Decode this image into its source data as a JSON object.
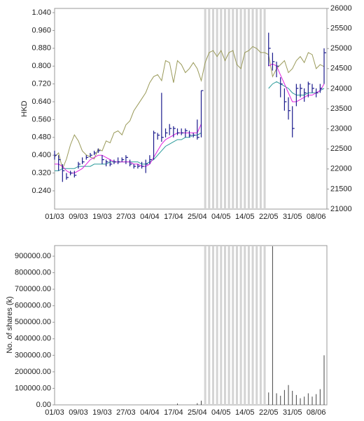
{
  "chart_data": [
    {
      "type": "stock",
      "y_label": "HKD",
      "categories": [
        "01/03",
        null,
        null,
        null,
        null,
        null,
        "09/03",
        null,
        null,
        null,
        null,
        null,
        "19/03",
        null,
        null,
        null,
        null,
        null,
        "27/03",
        null,
        null,
        null,
        null,
        null,
        "04/04",
        null,
        null,
        null,
        null,
        null,
        "17/04",
        null,
        null,
        null,
        null,
        null,
        "25/04",
        null,
        null,
        null,
        null,
        null,
        "04/05",
        null,
        null,
        null,
        null,
        null,
        "14/05",
        null,
        null,
        null,
        null,
        null,
        "22/05",
        null,
        null,
        null,
        null,
        null,
        "31/05",
        null,
        null,
        null,
        null,
        null,
        "08/06",
        null,
        null
      ],
      "high": [
        0.42,
        0.4,
        0.36,
        0.32,
        0.33,
        0.33,
        0.37,
        0.39,
        0.4,
        0.41,
        0.42,
        0.43,
        0.4,
        0.38,
        0.38,
        0.38,
        0.39,
        0.39,
        0.4,
        0.38,
        0.36,
        0.36,
        0.37,
        0.38,
        0.4,
        0.51,
        0.5,
        0.68,
        0.52,
        0.54,
        0.53,
        0.52,
        0.52,
        0.52,
        0.51,
        0.5,
        0.56,
        0.69,
        null,
        null,
        null,
        null,
        null,
        null,
        null,
        null,
        null,
        null,
        null,
        null,
        null,
        null,
        null,
        null,
        0.95,
        0.86,
        0.82,
        0.75,
        0.7,
        0.66,
        0.62,
        0.72,
        0.72,
        0.7,
        0.73,
        0.72,
        0.7,
        0.72,
        0.88
      ],
      "low": [
        0.38,
        0.33,
        0.28,
        0.29,
        0.31,
        0.3,
        0.34,
        0.36,
        0.38,
        0.39,
        0.4,
        0.41,
        0.36,
        0.35,
        0.35,
        0.36,
        0.36,
        0.37,
        0.36,
        0.35,
        0.34,
        0.34,
        0.34,
        0.32,
        0.36,
        0.38,
        0.47,
        0.46,
        0.48,
        0.49,
        0.48,
        0.49,
        0.49,
        0.48,
        0.48,
        0.48,
        0.47,
        0.48,
        null,
        null,
        null,
        null,
        null,
        null,
        null,
        null,
        null,
        null,
        null,
        null,
        null,
        null,
        null,
        null,
        0.8,
        0.78,
        0.75,
        0.66,
        0.6,
        0.56,
        0.48,
        0.62,
        0.66,
        0.64,
        0.66,
        0.68,
        0.66,
        0.68,
        0.72
      ],
      "close": [
        0.4,
        0.38,
        0.33,
        0.3,
        0.32,
        0.31,
        0.36,
        0.37,
        0.39,
        0.4,
        0.41,
        0.42,
        0.38,
        0.37,
        0.36,
        0.37,
        0.37,
        0.38,
        0.39,
        0.36,
        0.35,
        0.35,
        0.35,
        0.36,
        0.38,
        0.5,
        0.49,
        0.48,
        0.5,
        0.52,
        0.52,
        0.5,
        0.5,
        0.51,
        0.49,
        0.49,
        0.48,
        0.69,
        null,
        null,
        null,
        null,
        null,
        null,
        null,
        null,
        null,
        null,
        null,
        null,
        null,
        null,
        null,
        null,
        0.88,
        0.82,
        0.8,
        0.72,
        0.64,
        0.6,
        0.52,
        0.7,
        0.7,
        0.68,
        0.72,
        0.7,
        0.68,
        0.7,
        0.86
      ],
      "ma_short": [
        0.36,
        0.36,
        0.35,
        0.33,
        0.32,
        0.32,
        0.33,
        0.34,
        0.36,
        0.38,
        0.39,
        0.4,
        0.4,
        0.39,
        0.38,
        0.37,
        0.37,
        0.37,
        0.37,
        0.37,
        0.36,
        0.36,
        0.35,
        0.35,
        0.36,
        0.39,
        0.42,
        0.45,
        0.47,
        0.48,
        0.49,
        0.5,
        0.5,
        0.5,
        0.5,
        0.5,
        0.5,
        0.54,
        null,
        null,
        null,
        null,
        null,
        null,
        null,
        null,
        null,
        null,
        null,
        null,
        null,
        null,
        null,
        null,
        0.8,
        0.81,
        0.8,
        0.76,
        0.72,
        0.68,
        0.64,
        0.64,
        0.65,
        0.66,
        0.67,
        0.67,
        0.68,
        0.69,
        0.72
      ],
      "ma_long": [
        0.33,
        0.33,
        0.34,
        0.34,
        0.34,
        0.34,
        0.35,
        0.35,
        0.35,
        0.35,
        0.36,
        0.36,
        0.36,
        0.36,
        0.37,
        0.37,
        0.37,
        0.37,
        0.37,
        0.37,
        0.37,
        0.37,
        0.36,
        0.36,
        0.37,
        0.38,
        0.4,
        0.42,
        0.44,
        0.45,
        0.46,
        0.47,
        0.47,
        0.48,
        0.48,
        0.49,
        0.49,
        0.5,
        null,
        null,
        null,
        null,
        null,
        null,
        null,
        null,
        null,
        null,
        null,
        null,
        null,
        null,
        null,
        null,
        0.7,
        0.72,
        0.73,
        0.72,
        0.71,
        0.7,
        0.68,
        0.67,
        0.67,
        0.67,
        0.68,
        0.68,
        0.68,
        0.69,
        0.7
      ],
      "index": [
        22300,
        22400,
        22000,
        22250,
        22600,
        22850,
        22700,
        22450,
        22350,
        22300,
        22250,
        22500,
        22450,
        22700,
        22650,
        22900,
        22950,
        22850,
        23100,
        23200,
        23450,
        23600,
        23750,
        23900,
        24150,
        24300,
        24350,
        24200,
        24700,
        24650,
        24150,
        24700,
        24600,
        24400,
        24500,
        24650,
        24500,
        24200,
        24650,
        24900,
        24950,
        24800,
        24950,
        24700,
        24900,
        24950,
        24600,
        24500,
        24900,
        24950,
        25050,
        25000,
        24900,
        24900,
        24850,
        24300,
        24500,
        24600,
        24700,
        24400,
        24500,
        24700,
        24800,
        24650,
        24900,
        24850,
        24500,
        24600,
        24550
      ],
      "bar_color": "#1a1a8c",
      "ma_short_color": "#e020e0",
      "ma_long_color": "#2a9a9a",
      "index_color": "#9a9a5a",
      "gap_color": "#d4d4d4",
      "ylim": [
        0.158,
        1.059
      ],
      "yticks": [
        {
          "value": 0.24,
          "label": "0.240"
        },
        {
          "value": 0.32,
          "label": "0.320"
        },
        {
          "value": 0.4,
          "label": "0.400"
        },
        {
          "value": 0.48,
          "label": "0.480"
        },
        {
          "value": 0.56,
          "label": "0.560"
        },
        {
          "value": 0.64,
          "label": "0.640"
        },
        {
          "value": 0.72,
          "label": "0.720"
        },
        {
          "value": 0.8,
          "label": "0.800"
        },
        {
          "value": 0.88,
          "label": "0.880"
        },
        {
          "value": 0.96,
          "label": "0.960"
        },
        {
          "value": 1.04,
          "label": "1.040"
        }
      ],
      "y2lim": [
        21000,
        26000
      ],
      "y2ticks": [
        21000,
        21500,
        22000,
        22500,
        23000,
        23500,
        24000,
        24500,
        25000,
        25500,
        26000
      ]
    },
    {
      "type": "bar",
      "y_label": "No. of shares (k)",
      "categories": [
        "01/03",
        null,
        null,
        null,
        null,
        null,
        "09/03",
        null,
        null,
        null,
        null,
        null,
        "19/03",
        null,
        null,
        null,
        null,
        null,
        "27/03",
        null,
        null,
        null,
        null,
        null,
        "04/04",
        null,
        null,
        null,
        null,
        null,
        "17/04",
        null,
        null,
        null,
        null,
        null,
        "25/04",
        null,
        null,
        null,
        null,
        null,
        "04/05",
        null,
        null,
        null,
        null,
        null,
        "14/05",
        null,
        null,
        null,
        null,
        null,
        "22/05",
        null,
        null,
        null,
        null,
        null,
        "31/05",
        null,
        null,
        null,
        null,
        null,
        "08/06",
        null,
        null
      ],
      "values": [
        0,
        0,
        0,
        0,
        0,
        0,
        0,
        0,
        0,
        0,
        0,
        0,
        0,
        0,
        0,
        0,
        0,
        0,
        0,
        0,
        0,
        0,
        0,
        0,
        0,
        0,
        0,
        0,
        0,
        0,
        0,
        8000,
        0,
        0,
        0,
        0,
        10000,
        25000,
        null,
        null,
        null,
        null,
        null,
        null,
        null,
        null,
        null,
        null,
        null,
        null,
        null,
        null,
        null,
        null,
        75000,
        960000,
        70000,
        55000,
        90000,
        120000,
        85000,
        60000,
        40000,
        50000,
        70000,
        50000,
        65000,
        95000,
        300000
      ],
      "color": "#444444",
      "gap_color": "#d4d4d4",
      "ylim": [
        0,
        964000
      ],
      "yticks": [
        {
          "value": 0,
          "label": "0.00"
        },
        {
          "value": 100000,
          "label": "100000.00"
        },
        {
          "value": 200000,
          "label": "200000.00"
        },
        {
          "value": 300000,
          "label": "300000.00"
        },
        {
          "value": 400000,
          "label": "400000.00"
        },
        {
          "value": 500000,
          "label": "500000.00"
        },
        {
          "value": 600000,
          "label": "600000.00"
        },
        {
          "value": 700000,
          "label": "700000.00"
        },
        {
          "value": 800000,
          "label": "800000.00"
        },
        {
          "value": 900000,
          "label": "900000.00"
        }
      ]
    }
  ]
}
